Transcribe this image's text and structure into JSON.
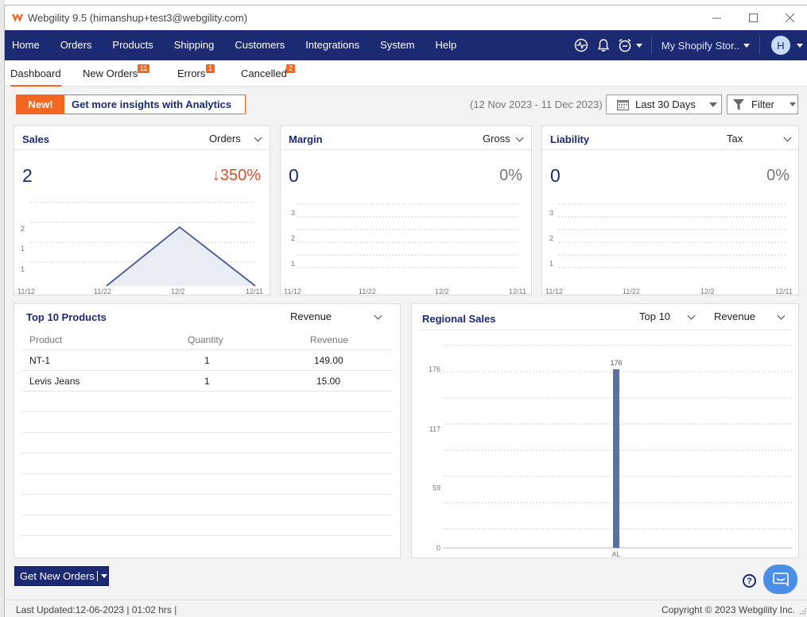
{
  "window": {
    "title": "Webgility 9.5 (himanshup+test3@webgility.com)"
  },
  "nav": {
    "items": [
      "Home",
      "Orders",
      "Products",
      "Shipping",
      "Customers",
      "Integrations",
      "System",
      "Help"
    ],
    "store": "My Shopify Stor..",
    "avatar_initial": "H"
  },
  "subtabs": [
    {
      "label": "Dashboard",
      "badge": ""
    },
    {
      "label": "New Orders",
      "badge": "11"
    },
    {
      "label": "Errors",
      "badge": "1"
    },
    {
      "label": "Cancelled",
      "badge": "2"
    }
  ],
  "promo": {
    "tag": "New!",
    "text": "Get more insights with Analytics"
  },
  "date_range": "(12 Nov 2023 - 11 Dec 2023)",
  "period_select": "Last 30 Days",
  "filter_label": "Filter",
  "cards": {
    "sales": {
      "title": "Sales",
      "dropdown": "Orders",
      "value": "2",
      "change": "↓350%",
      "chart_data": {
        "type": "area",
        "x": [
          "11/12",
          "11/22",
          "12/2",
          "12/11"
        ],
        "y_ticks": [
          "2",
          "1",
          "1"
        ],
        "values": [
          0,
          0,
          2,
          0
        ]
      }
    },
    "margin": {
      "title": "Margin",
      "dropdown": "Gross",
      "value": "0",
      "change": "0%",
      "chart_data": {
        "type": "line",
        "x": [
          "11/12",
          "11/22",
          "12/2",
          "12/11"
        ],
        "y_ticks": [
          "3",
          "2",
          "1"
        ],
        "values": [
          0,
          0,
          0,
          0
        ]
      }
    },
    "liability": {
      "title": "Liability",
      "dropdown": "Tax",
      "value": "0",
      "change": "0%",
      "chart_data": {
        "type": "line",
        "x": [
          "11/12",
          "11/22",
          "12/2",
          "12/11"
        ],
        "y_ticks": [
          "3",
          "2",
          "1"
        ],
        "values": [
          0,
          0,
          0,
          0
        ]
      }
    }
  },
  "top_products": {
    "title": "Top 10 Products",
    "dropdown": "Revenue",
    "columns": [
      "Product",
      "Quantity",
      "Revenue"
    ],
    "rows": [
      {
        "product": "NT-1",
        "quantity": "1",
        "revenue": "149.00"
      },
      {
        "product": "Levis Jeans",
        "quantity": "1",
        "revenue": "15.00"
      }
    ]
  },
  "regional": {
    "title": "Regional Sales",
    "dropdown_top": "Top 10",
    "dropdown_metric": "Revenue",
    "chart_data": {
      "type": "bar",
      "categories": [
        "AL"
      ],
      "values": [
        176
      ],
      "y_ticks": [
        "176",
        "117",
        "59",
        "0"
      ],
      "ylim": [
        0,
        176
      ],
      "data_labels": [
        "176"
      ]
    }
  },
  "actions": {
    "get_orders": "Get New Orders"
  },
  "status": {
    "last_updated": "Last Updated:12-06-2023 | 01:02 hrs |",
    "copyright": "Copyright © 2023 Webgility Inc."
  }
}
